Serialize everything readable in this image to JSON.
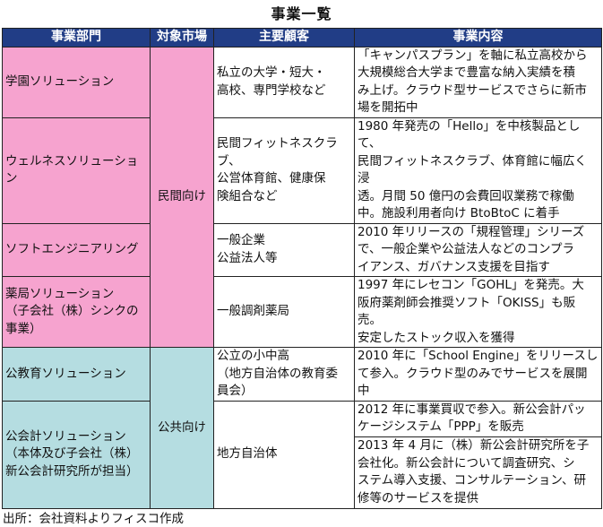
{
  "title": "事業一覧",
  "colors": {
    "header_bg": "#213d86",
    "private_bg": "#f6a3cf",
    "public_bg": "#b5dde1"
  },
  "headers": [
    "事業部門",
    "対象市場",
    "主要顧客",
    "事業内容"
  ],
  "markets": {
    "private": "民間向け",
    "public": "公共向け"
  },
  "rows": [
    {
      "division": "学園ソリューション",
      "customer": "私立の大学・短大・\n高校、専門学校など",
      "content": "「キャンパスプラン」を軸に私立高校から\n大規模総合大学まで豊富な納入実績を積\nみ上げ。クラウド型サービスでさらに新市\n場を開拓中"
    },
    {
      "division": "ウェルネスソリューション",
      "customer": "民間フィットネスクラブ、\n公営体育館、健康保\n険組合など",
      "content": "1980 年発売の「Hello」を中核製品として、\n民間フィットネスクラブ、体育館に幅広く浸\n透。月間 50 億円の会費回収業務で稼働\n中。施設利用者向け BtoBtoC に着手"
    },
    {
      "division": "ソフトエンジニアリング",
      "customer": "一般企業\n公益法人等",
      "content": "2010 年リリースの「規程管理」シリーズ\nで、一般企業や公益法人などのコンプラ\nイアンス、ガバナンス支援を目指す"
    },
    {
      "division": "薬局ソリューション\n（子会社（株）シンクの\n事業）",
      "customer": "一般調剤薬局",
      "content": "1997 年にレセコン「GOHL」を発売。大\n阪府薬剤師会推奨ソフト「OKISS」も販売。\n安定したストック収入を獲得"
    },
    {
      "division": "公教育ソリューション",
      "customer": "公立の小中高\n（地方自治体の教育委\n員会）",
      "content": "2010 年に「School Engine」をリリースし\nて参入。クラウド型のみでサービスを展開\n中"
    },
    {
      "division": "公会計ソリューション\n（本体及び子会社（株）\n新公会計研究所が担当）",
      "customer": "地方自治体",
      "content": "2012 年に事業買収で参入。新公会計パッ\nケージシステム「PPP」を販売",
      "content2": "2013 年 4 月に（株）新公会計研究所を子\n会社化。新公会計について調査研究、シ\nステム導入支援、コンサルテーション、研\n修等のサービスを提供"
    }
  ],
  "footer": "出所：会社資料よりフィスコ作成"
}
